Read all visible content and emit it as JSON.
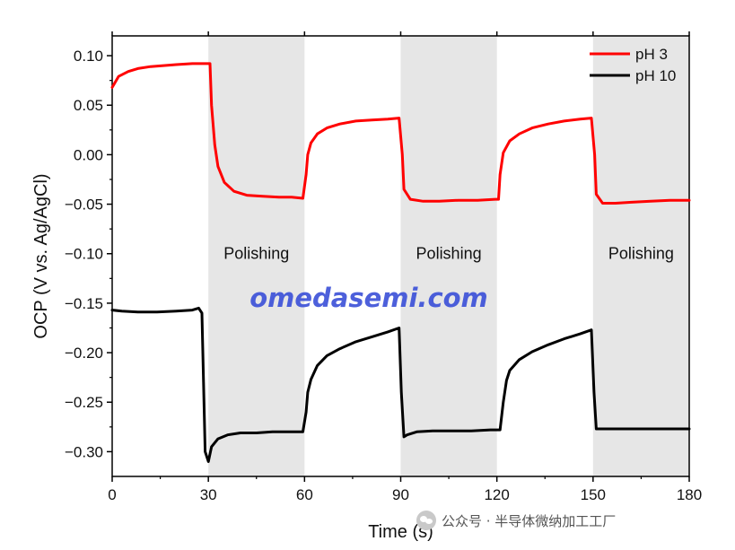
{
  "chart_data": {
    "type": "line",
    "xlabel": "Time (s)",
    "ylabel": "OCP (V vs. Ag/AgCl)",
    "xlim": [
      0,
      180
    ],
    "ylim": [
      -0.325,
      0.12
    ],
    "xticks": [
      0,
      30,
      60,
      90,
      120,
      150,
      180
    ],
    "yticks": [
      0.1,
      0.05,
      0.0,
      -0.05,
      -0.1,
      -0.15,
      -0.2,
      -0.25,
      -0.3
    ],
    "ytick_labels": [
      "0.10",
      "0.05",
      "0.00",
      "−0.05",
      "−0.10",
      "−0.15",
      "−0.20",
      "−0.25",
      "−0.30"
    ],
    "shaded_regions": [
      {
        "x": [
          30,
          60
        ],
        "label": "Polishing"
      },
      {
        "x": [
          90,
          120
        ],
        "label": "Polishing"
      },
      {
        "x": [
          150,
          180
        ],
        "label": "Polishing"
      }
    ],
    "legend_position": "top-right",
    "grid": false,
    "series": [
      {
        "name": "pH 3",
        "color": "#ff0000",
        "x": [
          0,
          2,
          5,
          8,
          12,
          16,
          20,
          25,
          29,
          30.5,
          31,
          32,
          33,
          35,
          38,
          42,
          47,
          52,
          56,
          59.5,
          60.5,
          61,
          62,
          64,
          67,
          71,
          76,
          81,
          86,
          89.5,
          90.5,
          91,
          93,
          97,
          102,
          108,
          114,
          119.5,
          120.5,
          121,
          122,
          124,
          127,
          131,
          136,
          141,
          146,
          149.5,
          150.5,
          151,
          153,
          157,
          162,
          168,
          174,
          180
        ],
        "y": [
          0.068,
          0.079,
          0.084,
          0.087,
          0.089,
          0.09,
          0.091,
          0.092,
          0.092,
          0.092,
          0.05,
          0.01,
          -0.012,
          -0.028,
          -0.037,
          -0.041,
          -0.042,
          -0.043,
          -0.043,
          -0.044,
          -0.02,
          0.0,
          0.012,
          0.021,
          0.027,
          0.031,
          0.034,
          0.035,
          0.036,
          0.037,
          0.0,
          -0.035,
          -0.045,
          -0.047,
          -0.047,
          -0.046,
          -0.046,
          -0.045,
          -0.045,
          -0.02,
          0.002,
          0.014,
          0.021,
          0.027,
          0.031,
          0.034,
          0.036,
          0.037,
          0.0,
          -0.04,
          -0.049,
          -0.049,
          -0.048,
          -0.047,
          -0.046,
          -0.046
        ]
      },
      {
        "name": "pH 10",
        "color": "#000000",
        "x": [
          0,
          3,
          8,
          14,
          20,
          25,
          27,
          28,
          28.5,
          29,
          30,
          31,
          33,
          36,
          40,
          45,
          50,
          55,
          59.5,
          60.5,
          61,
          62,
          64,
          67,
          71,
          76,
          81,
          86,
          89.5,
          90.2,
          91,
          92,
          95,
          100,
          106,
          112,
          118,
          121,
          122,
          123,
          124,
          127,
          131,
          136,
          141,
          146,
          149.5,
          150.3,
          151,
          155,
          160,
          166,
          172,
          180
        ],
        "y": [
          -0.157,
          -0.158,
          -0.159,
          -0.159,
          -0.158,
          -0.157,
          -0.155,
          -0.16,
          -0.23,
          -0.3,
          -0.31,
          -0.295,
          -0.287,
          -0.283,
          -0.281,
          -0.281,
          -0.28,
          -0.28,
          -0.28,
          -0.26,
          -0.24,
          -0.227,
          -0.213,
          -0.203,
          -0.196,
          -0.189,
          -0.184,
          -0.179,
          -0.175,
          -0.24,
          -0.285,
          -0.283,
          -0.28,
          -0.279,
          -0.279,
          -0.279,
          -0.278,
          -0.278,
          -0.25,
          -0.228,
          -0.218,
          -0.207,
          -0.199,
          -0.192,
          -0.186,
          -0.181,
          -0.177,
          -0.24,
          -0.277,
          -0.277,
          -0.277,
          -0.277,
          -0.277,
          -0.277
        ]
      }
    ]
  },
  "watermark": {
    "text": "omedasemi.com",
    "color": "#3a4fd8"
  },
  "footer": {
    "text": "公众号 · 半导体微纳加工工厂"
  }
}
